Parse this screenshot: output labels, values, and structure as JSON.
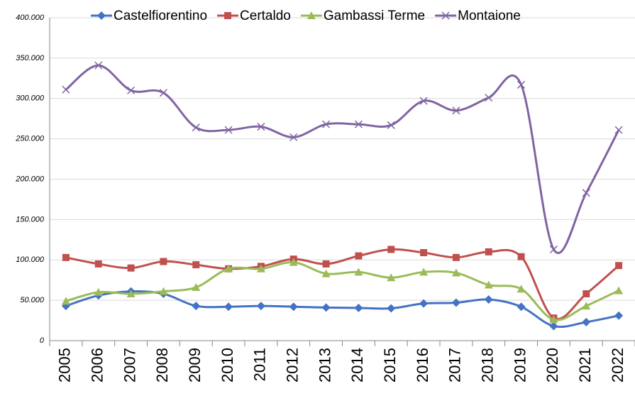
{
  "chart_data": {
    "type": "line",
    "categories": [
      "2005",
      "2006",
      "2007",
      "2008",
      "2009",
      "2010",
      "2011",
      "2012",
      "2013",
      "2014",
      "2015",
      "2016",
      "2017",
      "2018",
      "2019",
      "2020",
      "2021",
      "2022"
    ],
    "series": [
      {
        "name": "Castelfiorentino",
        "color": "#4472c4",
        "marker": "diamond",
        "values": [
          43000,
          56000,
          61000,
          58000,
          43000,
          42000,
          43000,
          42000,
          41000,
          40500,
          40000,
          46000,
          47000,
          51000,
          42000,
          18000,
          23000,
          31000
        ]
      },
      {
        "name": "Certaldo",
        "color": "#c0504d",
        "marker": "square",
        "values": [
          103000,
          95000,
          90000,
          98000,
          94000,
          89000,
          92000,
          101000,
          95000,
          105000,
          113000,
          109000,
          103000,
          110000,
          104000,
          28000,
          58000,
          93000
        ]
      },
      {
        "name": "Gambassi Terme",
        "color": "#9bbb59",
        "marker": "triangle",
        "values": [
          49000,
          60000,
          58000,
          61000,
          66000,
          89000,
          89000,
          97000,
          83000,
          85000,
          78000,
          85000,
          84000,
          69000,
          64000,
          26000,
          43000,
          62000
        ]
      },
      {
        "name": "Montaione",
        "color": "#8064a2",
        "marker": "x",
        "values": [
          311000,
          341000,
          310000,
          307000,
          264000,
          261000,
          265000,
          252000,
          268000,
          268000,
          267000,
          297000,
          285000,
          301000,
          317000,
          113000,
          183000,
          261000
        ]
      }
    ],
    "ylim": [
      0,
      400000
    ],
    "yticks": [
      0,
      {
        "value": 50000,
        "label": "50.000"
      },
      {
        "value": 100000,
        "label": "100.000"
      },
      {
        "value": 150000,
        "label": "150.000"
      },
      {
        "value": 200000,
        "label": "200.000"
      },
      {
        "value": 250000,
        "label": "250.000"
      },
      {
        "value": 300000,
        "label": "300.000"
      },
      {
        "value": 350000,
        "label": "350.000"
      },
      {
        "value": 400000,
        "label": "400.000"
      }
    ],
    "grid": true,
    "smooth": true,
    "legend": "top"
  }
}
